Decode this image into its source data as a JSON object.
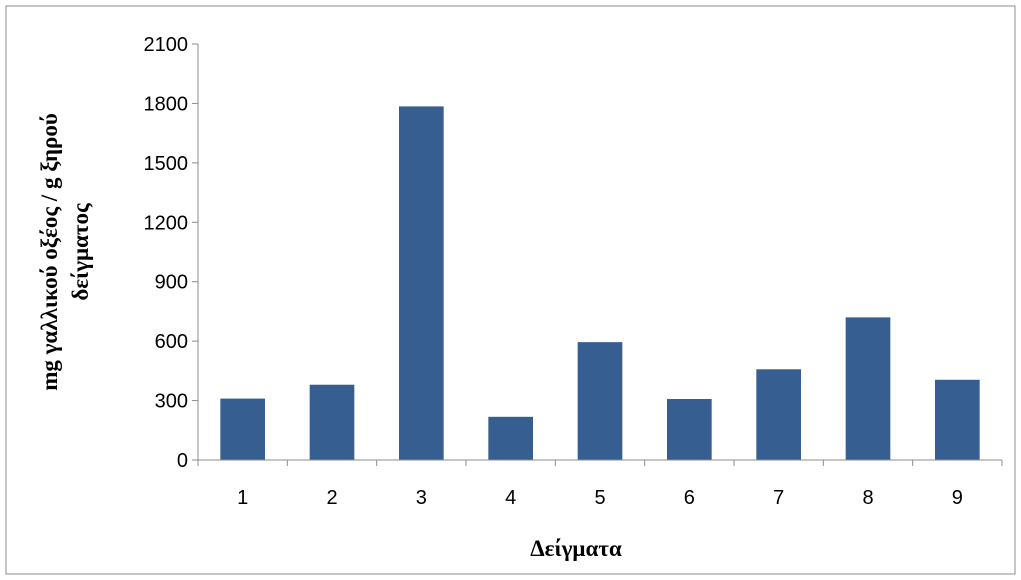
{
  "chart_data": {
    "type": "bar",
    "categories": [
      "1",
      "2",
      "3",
      "4",
      "5",
      "6",
      "7",
      "8",
      "9"
    ],
    "values": [
      310,
      380,
      1785,
      218,
      595,
      308,
      458,
      720,
      405
    ],
    "xlabel": "Δείγματα",
    "ylabel_line1": "mg  γαλλικού οξέος / g  ξηρού",
    "ylabel_line2": "δείγματος",
    "ylim": [
      0,
      2100
    ],
    "yticks": [
      "0",
      "300",
      "600",
      "900",
      "1200",
      "1500",
      "1800",
      "2100"
    ],
    "bar_color": "#375e91",
    "grid": false,
    "legend": "none"
  }
}
